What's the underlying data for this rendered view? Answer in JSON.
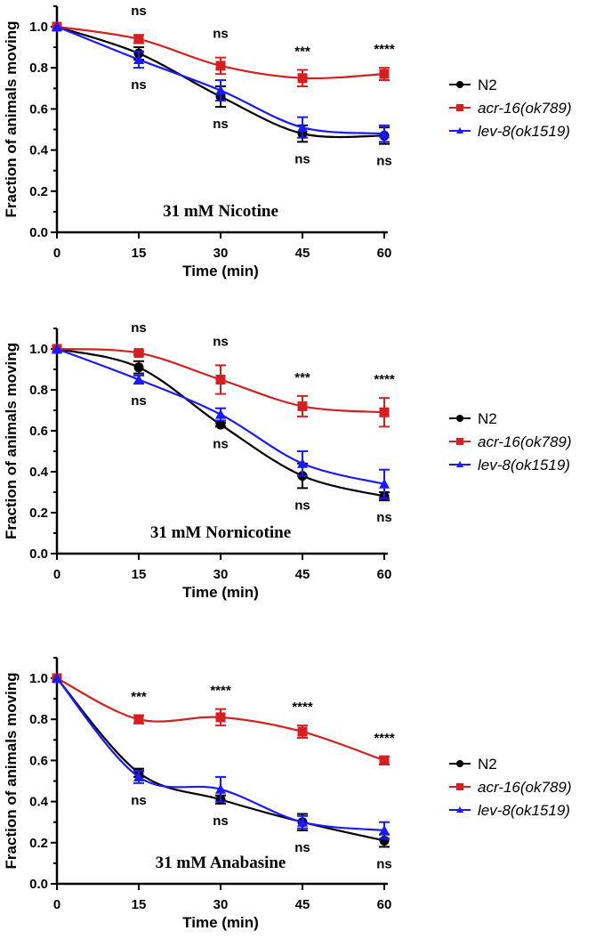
{
  "chart_data": [
    {
      "type": "line",
      "title": "31 mM Nicotine",
      "xlabel": "Time (min)",
      "ylabel": "Fraction of animals moving",
      "x": [
        0,
        15,
        30,
        45,
        60
      ],
      "xticks": [
        "0",
        "15",
        "30",
        "45",
        "60"
      ],
      "yticks": [
        "0.0",
        "0.2",
        "0.4",
        "0.6",
        "0.8",
        "1.0"
      ],
      "xlim": [
        0,
        60
      ],
      "ylim": [
        0,
        1.1
      ],
      "legend_position": "right",
      "series": [
        {
          "name": "N2",
          "italic": false,
          "color": "#000000",
          "marker": "circle",
          "values": [
            1.0,
            0.87,
            0.66,
            0.48,
            0.47
          ],
          "errors": [
            0,
            0.03,
            0.05,
            0.04,
            0.04
          ]
        },
        {
          "name": "acr-16(ok789)",
          "italic": true,
          "color": "#d42020",
          "marker": "square",
          "values": [
            1.0,
            0.94,
            0.81,
            0.75,
            0.77
          ],
          "errors": [
            0,
            0.02,
            0.04,
            0.04,
            0.03
          ]
        },
        {
          "name": "lev-8(ok1519)",
          "italic": true,
          "color": "#1a1aff",
          "marker": "triangle",
          "values": [
            1.0,
            0.84,
            0.69,
            0.51,
            0.48
          ],
          "errors": [
            0,
            0.04,
            0.05,
            0.05,
            0.04
          ]
        }
      ],
      "annotations_above": [
        {
          "x": 15,
          "text": "ns"
        },
        {
          "x": 30,
          "text": "ns"
        },
        {
          "x": 45,
          "text": "***"
        },
        {
          "x": 60,
          "text": "****"
        }
      ],
      "annotations_below": [
        {
          "x": 15,
          "text": "ns"
        },
        {
          "x": 30,
          "text": "ns"
        },
        {
          "x": 45,
          "text": "ns"
        },
        {
          "x": 60,
          "text": "ns"
        }
      ]
    },
    {
      "type": "line",
      "title": "31 mM Nornicotine",
      "xlabel": "Time (min)",
      "ylabel": "Fraction of animals moving",
      "x": [
        0,
        15,
        30,
        45,
        60
      ],
      "xticks": [
        "0",
        "15",
        "30",
        "45",
        "60"
      ],
      "yticks": [
        "0.0",
        "0.2",
        "0.4",
        "0.6",
        "0.8",
        "1.0"
      ],
      "xlim": [
        0,
        60
      ],
      "ylim": [
        0,
        1.1
      ],
      "legend_position": "right",
      "series": [
        {
          "name": "N2",
          "italic": false,
          "color": "#000000",
          "marker": "circle",
          "values": [
            1.0,
            0.91,
            0.63,
            0.38,
            0.28
          ],
          "errors": [
            0,
            0.03,
            0.01,
            0.06,
            0.02
          ]
        },
        {
          "name": "acr-16(ok789)",
          "italic": true,
          "color": "#d42020",
          "marker": "square",
          "values": [
            1.0,
            0.98,
            0.85,
            0.72,
            0.69
          ],
          "errors": [
            0,
            0.01,
            0.07,
            0.05,
            0.07
          ]
        },
        {
          "name": "lev-8(ok1519)",
          "italic": true,
          "color": "#1a1aff",
          "marker": "triangle",
          "values": [
            1.0,
            0.85,
            0.68,
            0.44,
            0.34
          ],
          "errors": [
            0,
            0.02,
            0.03,
            0.06,
            0.07
          ]
        }
      ],
      "annotations_above": [
        {
          "x": 15,
          "text": "ns"
        },
        {
          "x": 30,
          "text": "ns"
        },
        {
          "x": 45,
          "text": "***"
        },
        {
          "x": 60,
          "text": "****"
        }
      ],
      "annotations_below": [
        {
          "x": 15,
          "text": "ns"
        },
        {
          "x": 30,
          "text": "ns"
        },
        {
          "x": 45,
          "text": "ns"
        },
        {
          "x": 60,
          "text": "ns"
        }
      ]
    },
    {
      "type": "line",
      "title": "31 mM Anabasine",
      "xlabel": "Time (min)",
      "ylabel": "Fraction of animals moving",
      "x": [
        0,
        15,
        30,
        45,
        60
      ],
      "xticks": [
        "0",
        "15",
        "30",
        "45",
        "60"
      ],
      "yticks": [
        "0.0",
        "0.2",
        "0.4",
        "0.6",
        "0.8",
        "1.0"
      ],
      "xlim": [
        0,
        60
      ],
      "ylim": [
        0,
        1.1
      ],
      "legend_position": "right",
      "series": [
        {
          "name": "N2",
          "italic": false,
          "color": "#000000",
          "marker": "circle",
          "values": [
            1.0,
            0.54,
            0.41,
            0.3,
            0.21
          ],
          "errors": [
            0,
            0.02,
            0.02,
            0.04,
            0.03
          ]
        },
        {
          "name": "acr-16(ok789)",
          "italic": true,
          "color": "#d42020",
          "marker": "square",
          "values": [
            1.0,
            0.8,
            0.81,
            0.74,
            0.6
          ],
          "errors": [
            0,
            0.02,
            0.04,
            0.03,
            0.02
          ]
        },
        {
          "name": "lev-8(ok1519)",
          "italic": true,
          "color": "#1a1aff",
          "marker": "triangle",
          "values": [
            1.0,
            0.52,
            0.46,
            0.3,
            0.26
          ],
          "errors": [
            0,
            0.03,
            0.06,
            0.03,
            0.04
          ]
        }
      ],
      "annotations_above": [
        {
          "x": 15,
          "text": "***"
        },
        {
          "x": 30,
          "text": "****"
        },
        {
          "x": 45,
          "text": "****"
        },
        {
          "x": 60,
          "text": "****"
        }
      ],
      "annotations_below": [
        {
          "x": 15,
          "text": "ns"
        },
        {
          "x": 30,
          "text": "ns"
        },
        {
          "x": 45,
          "text": "ns"
        },
        {
          "x": 60,
          "text": "ns"
        }
      ]
    }
  ]
}
